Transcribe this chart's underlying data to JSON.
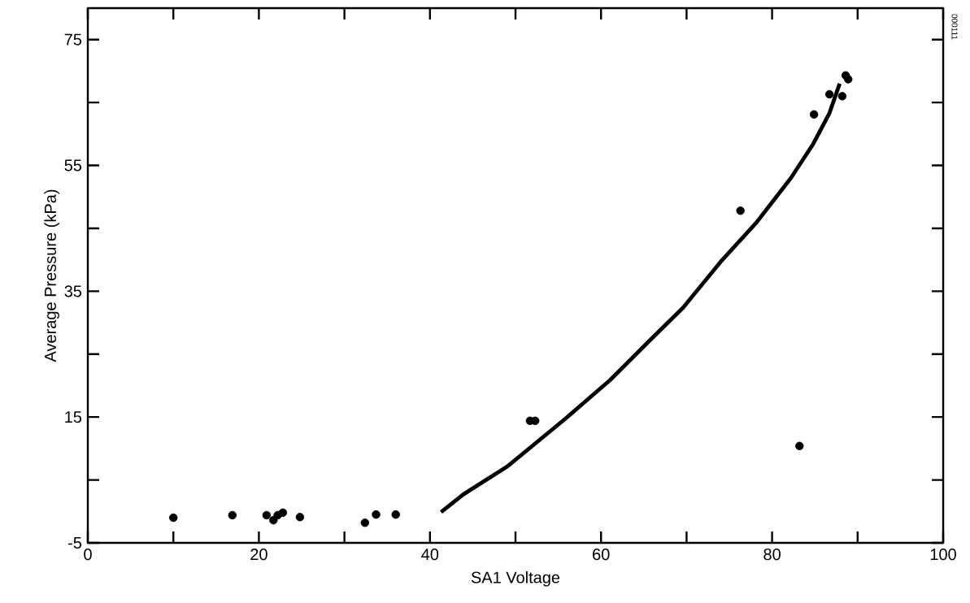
{
  "chart_data": {
    "type": "scatter",
    "xlabel": "SA1 Voltage",
    "ylabel": "Average Pressure (kPa)",
    "xlim": [
      0,
      100
    ],
    "ylim": [
      -5,
      80
    ],
    "xticks": [
      0,
      {
        "value": 10,
        "label": null
      },
      20,
      {
        "value": 30,
        "label": null
      },
      40,
      {
        "value": 50,
        "label": null
      },
      60,
      {
        "value": 70,
        "label": null
      },
      80,
      {
        "value": 90,
        "label": null
      },
      100
    ],
    "yticks": [
      -5,
      {
        "value": 5,
        "label": null
      },
      15,
      {
        "value": 25,
        "label": null
      },
      35,
      {
        "value": 45,
        "label": null
      },
      55,
      {
        "value": 65,
        "label": null
      },
      75
    ],
    "grid": false,
    "annotations": [
      "000111"
    ],
    "series": [
      {
        "type": "line",
        "color": "#000000",
        "x": [
          41.3,
          43.9,
          49.0,
          55.8,
          61.0,
          65.5,
          69.6,
          74.0,
          78.1,
          82.2,
          84.8,
          86.7,
          87.9
        ],
        "values": [
          -0.1,
          2.7,
          7.1,
          14.7,
          20.8,
          26.9,
          32.4,
          39.7,
          45.8,
          53.0,
          58.4,
          63.3,
          68.0
        ]
      },
      {
        "color": "#000000",
        "x": [
          10.0,
          16.9,
          20.9,
          21.7,
          22.2,
          22.8,
          24.8,
          32.4,
          33.7,
          36.0,
          51.7,
          52.3,
          76.3,
          83.2,
          84.9,
          86.7,
          88.2,
          88.6,
          88.9
        ],
        "values": [
          -1.0,
          -0.6,
          -0.6,
          -1.4,
          -0.6,
          -0.2,
          -0.9,
          -1.8,
          -0.5,
          -0.5,
          14.4,
          14.4,
          47.8,
          10.4,
          63.1,
          66.3,
          66.0,
          69.3,
          68.7
        ]
      }
    ]
  }
}
